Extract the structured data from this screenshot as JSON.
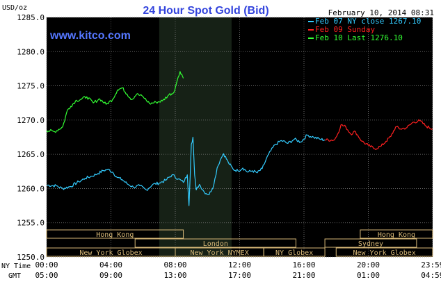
{
  "header": {
    "unit_label": "USD/oz",
    "title": "24 Hour Spot Gold (Bid)",
    "datetime": "February 10, 2014 08:31",
    "watermark": "www.kitco.com"
  },
  "legend": [
    {
      "label": "Feb 07 NY close 1267.10",
      "color": "#33ccff"
    },
    {
      "label": "Feb 09 Sunday",
      "color": "#ff2020"
    },
    {
      "label": "Feb 10 Last 1276.10",
      "color": "#33ff33"
    }
  ],
  "axis_prefix": {
    "ny": "NY Time",
    "gmt": "GMT"
  },
  "x_ticks_ny": [
    "00:00",
    "04:00",
    "08:00",
    "12:00",
    "16:00",
    "20:00",
    "23:59"
  ],
  "x_ticks_gmt": [
    "05:00",
    "09:00",
    "13:00",
    "17:00",
    "21:00",
    "01:00",
    "04:59"
  ],
  "y_ticks": [
    "1285.0",
    "1280.0",
    "1275.0",
    "1270.0",
    "1265.0",
    "1260.0",
    "1255.0",
    "1250.0"
  ],
  "markets": [
    {
      "name": "Hong Kong",
      "start": 0.0,
      "end": 8.5,
      "row": 0
    },
    {
      "name": "London",
      "start": 5.5,
      "end": 15.5,
      "row": 1
    },
    {
      "name": "New York Globex",
      "start": 0.0,
      "end": 8.0,
      "row": 2
    },
    {
      "name": "New York NYMEX",
      "start": 8.0,
      "end": 13.5,
      "row": 2
    },
    {
      "name": "NY Globex",
      "start": 13.5,
      "end": 17.3,
      "row": 2
    },
    {
      "name": "Hong Kong",
      "start": 19.5,
      "end": 24.0,
      "row": 0
    },
    {
      "name": "Sydney",
      "start": 17.3,
      "end": 23.0,
      "row": 1
    },
    {
      "name": "New York Globex",
      "start": 18.0,
      "end": 24.0,
      "row": 2
    }
  ],
  "chart_data": {
    "type": "line",
    "title": "24 Hour Spot Gold (Bid)",
    "ylabel": "USD/oz",
    "xlabel": "",
    "ylim": [
      1250,
      1285
    ],
    "xlim": [
      0,
      24
    ],
    "grid": true,
    "legend_placement": "top-right",
    "highlight_region": {
      "start": 7.0,
      "end": 11.5
    },
    "series": [
      {
        "name": "Feb 07 NY close 1267.10",
        "color": "#33ccff",
        "x": [
          0,
          0.6,
          1.0,
          1.5,
          2.0,
          2.4,
          2.8,
          3.2,
          3.5,
          3.8,
          4.1,
          4.4,
          4.7,
          5.0,
          5.4,
          5.8,
          6.2,
          6.6,
          7.0,
          7.4,
          7.8,
          8.2,
          8.5,
          8.75,
          8.85,
          9.0,
          9.1,
          9.2,
          9.3,
          9.5,
          9.8,
          10.1,
          10.4,
          10.6,
          10.8,
          11.0,
          11.3,
          11.6,
          11.9,
          12.2,
          12.5,
          12.8,
          13.1,
          13.4,
          13.8,
          14.2,
          14.6,
          15.0,
          15.4,
          15.8,
          16.2,
          16.6,
          17.0,
          17.3
        ],
        "values": [
          1260.5,
          1260.4,
          1260.0,
          1260.3,
          1261.0,
          1261.5,
          1261.8,
          1262.2,
          1262.6,
          1262.8,
          1262.4,
          1261.6,
          1261.3,
          1260.7,
          1260.2,
          1260.4,
          1259.8,
          1260.6,
          1260.8,
          1261.2,
          1262.0,
          1261.4,
          1260.9,
          1262.0,
          1257.5,
          1266.5,
          1267.5,
          1262.0,
          1259.8,
          1260.6,
          1259.5,
          1259.1,
          1260.6,
          1263.0,
          1264.2,
          1265.1,
          1263.8,
          1262.8,
          1262.6,
          1263.0,
          1262.4,
          1262.6,
          1262.3,
          1262.9,
          1265.0,
          1266.4,
          1267.0,
          1266.6,
          1267.2,
          1266.8,
          1267.8,
          1267.5,
          1267.2,
          1267.1
        ]
      },
      {
        "name": "Feb 09 Sunday",
        "color": "#ff2020",
        "x": [
          17.3,
          17.9,
          18.1,
          18.3,
          18.6,
          18.9,
          19.2,
          19.6,
          20.0,
          20.4,
          20.8,
          21.1,
          21.4,
          21.7,
          22.0,
          22.4,
          22.8,
          23.2,
          23.6,
          23.99
        ],
        "values": [
          1267.1,
          1267.1,
          1268.0,
          1269.3,
          1269.0,
          1268.0,
          1268.3,
          1266.9,
          1266.3,
          1265.8,
          1266.2,
          1266.9,
          1267.6,
          1269.0,
          1268.7,
          1268.9,
          1269.7,
          1269.9,
          1269.1,
          1268.7
        ]
      },
      {
        "name": "Feb 10 Last 1276.10",
        "color": "#33ff33",
        "x": [
          0,
          0.5,
          1.0,
          1.3,
          1.5,
          1.8,
          2.1,
          2.5,
          2.9,
          3.3,
          3.7,
          4.1,
          4.4,
          4.7,
          5.0,
          5.3,
          5.6,
          6.0,
          6.4,
          6.8,
          7.2,
          7.6,
          7.9,
          8.1,
          8.3,
          8.4,
          8.5
        ],
        "values": [
          1268.5,
          1268.3,
          1269.0,
          1271.5,
          1272.0,
          1272.8,
          1273.0,
          1273.4,
          1272.5,
          1273.1,
          1272.3,
          1273.0,
          1274.4,
          1274.7,
          1273.8,
          1273.0,
          1273.8,
          1273.4,
          1272.4,
          1272.6,
          1272.8,
          1273.7,
          1274.0,
          1275.6,
          1277.1,
          1276.7,
          1276.1
        ]
      }
    ]
  }
}
